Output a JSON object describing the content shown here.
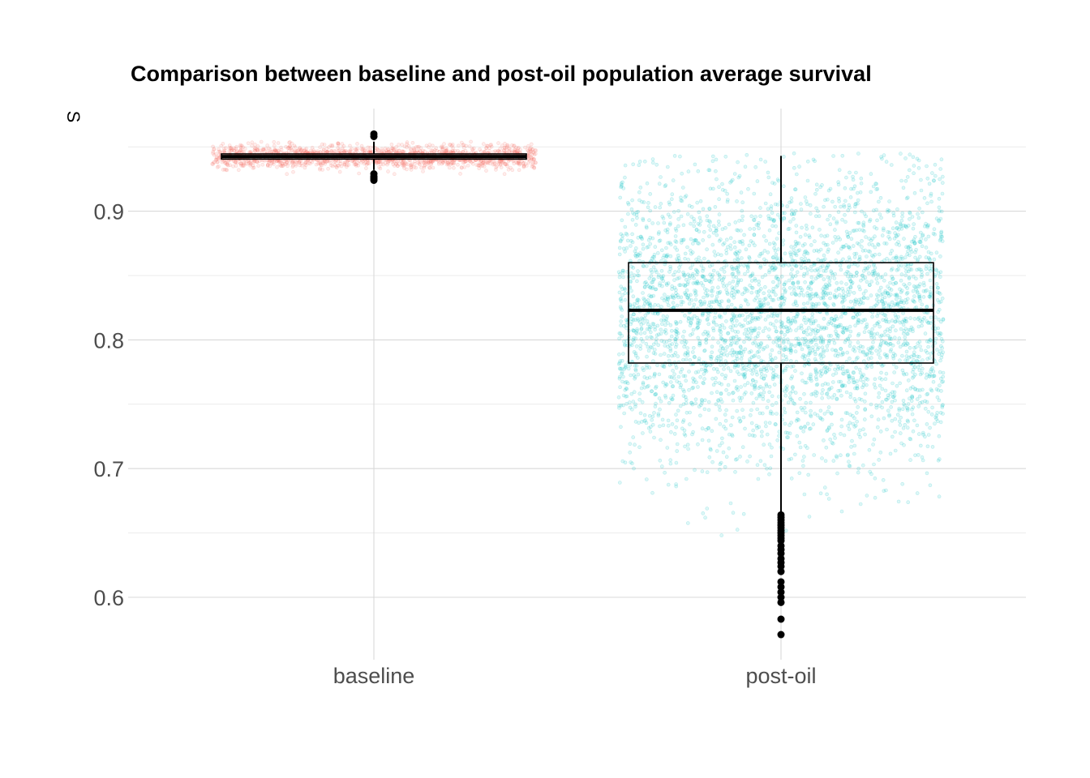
{
  "chart_data": {
    "type": "boxplot",
    "title": "Comparison between baseline and post-oil population average survival",
    "xlabel": "",
    "ylabel": "S",
    "categories": [
      "baseline",
      "post-oil"
    ],
    "ylim": [
      0.55,
      0.985
    ],
    "yticks": [
      0.6,
      0.7,
      0.8,
      0.9
    ],
    "ytick_labels": [
      "0.6",
      "0.7",
      "0.8",
      "0.9"
    ],
    "grid": true,
    "legend": "none",
    "series": [
      {
        "category": "baseline",
        "color": "#F8766D",
        "jitter_range": [
          0.925,
          0.955
        ],
        "whisker_low": 0.932,
        "q1": 0.9405,
        "median": 0.9425,
        "q3": 0.9445,
        "whisker_high": 0.954,
        "outliers": [
          0.958,
          0.96,
          0.929,
          0.927,
          0.926,
          0.925,
          0.924
        ]
      },
      {
        "category": "post-oil",
        "color": "#00BFC4",
        "jitter_range": [
          0.57,
          0.945
        ],
        "whisker_low": 0.665,
        "q1": 0.782,
        "median": 0.823,
        "q3": 0.86,
        "whisker_high": 0.943,
        "outliers": [
          0.664,
          0.662,
          0.66,
          0.658,
          0.656,
          0.654,
          0.652,
          0.65,
          0.648,
          0.646,
          0.644,
          0.64,
          0.637,
          0.634,
          0.63,
          0.627,
          0.624,
          0.62,
          0.612,
          0.608,
          0.604,
          0.6,
          0.596,
          0.583,
          0.571
        ]
      }
    ]
  }
}
